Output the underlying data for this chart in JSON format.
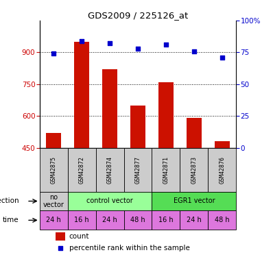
{
  "title": "GDS2009 / 225126_at",
  "samples": [
    "GSM42875",
    "GSM42872",
    "GSM42874",
    "GSM42877",
    "GSM42871",
    "GSM42873",
    "GSM42876"
  ],
  "counts": [
    520,
    950,
    820,
    650,
    760,
    590,
    480
  ],
  "percentiles": [
    74,
    84,
    82,
    78,
    81,
    76,
    71
  ],
  "ylim_left": [
    450,
    1050
  ],
  "ylim_right": [
    0,
    100
  ],
  "yticks_left": [
    450,
    600,
    750,
    900
  ],
  "yticks_right": [
    0,
    25,
    50,
    75,
    100
  ],
  "bar_color": "#cc1100",
  "scatter_color": "#0000cc",
  "infection_data": [
    [
      0,
      1,
      "#cccccc",
      "no\nvector"
    ],
    [
      1,
      4,
      "#99ff99",
      "control vector"
    ],
    [
      4,
      7,
      "#55dd55",
      "EGR1 vector"
    ]
  ],
  "time_labels": [
    "24 h",
    "16 h",
    "24 h",
    "48 h",
    "16 h",
    "24 h",
    "48 h"
  ],
  "time_color": "#dd77dd",
  "left_tick_color": "#cc0000",
  "right_tick_color": "#0000cc",
  "background_color": "#ffffff",
  "sample_bg_color": "#cccccc",
  "grid_color": "#000000"
}
